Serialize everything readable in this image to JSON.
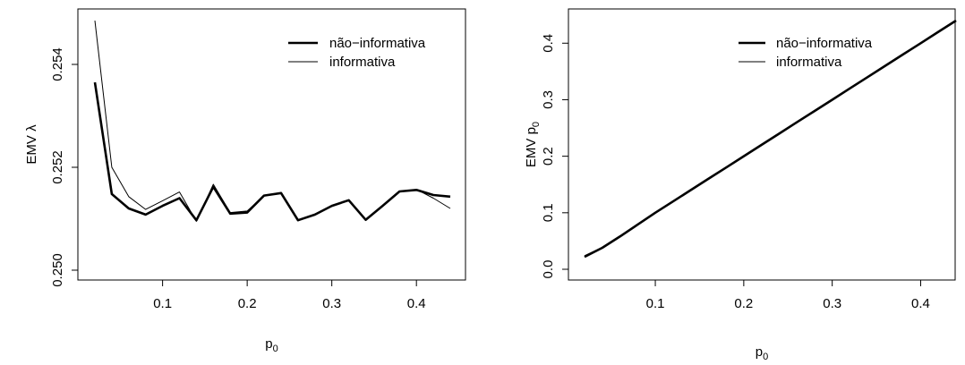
{
  "chart_data": [
    {
      "type": "line",
      "xlabel": "p",
      "xlabel_sub": "0",
      "ylabel": "EMV  λ",
      "ylabel_sub": "",
      "xlim": [
        0.02,
        0.44
      ],
      "ylim": [
        0.25,
        0.2548
      ],
      "xticks": [
        0.1,
        0.2,
        0.3,
        0.4
      ],
      "xtick_labels": [
        "0.1",
        "0.2",
        "0.3",
        "0.4"
      ],
      "yticks": [
        0.25,
        0.252,
        0.254
      ],
      "ytick_labels": [
        "0.250",
        "0.252",
        "0.254"
      ],
      "grid": false,
      "legend_position": "top-right",
      "x": [
        0.02,
        0.04,
        0.06,
        0.08,
        0.1,
        0.12,
        0.14,
        0.16,
        0.18,
        0.2,
        0.22,
        0.24,
        0.26,
        0.28,
        0.3,
        0.32,
        0.34,
        0.36,
        0.38,
        0.4,
        0.42,
        0.44
      ],
      "series": [
        {
          "name": "não−informativa",
          "line_width": "thick",
          "values": [
            0.25365,
            0.25148,
            0.2512,
            0.25108,
            0.25125,
            0.2514,
            0.25097,
            0.25162,
            0.2511,
            0.25112,
            0.25145,
            0.2515,
            0.25097,
            0.25108,
            0.25125,
            0.25136,
            0.25098,
            0.25125,
            0.25153,
            0.25156,
            0.25146,
            0.25143
          ]
        },
        {
          "name": "informativa",
          "line_width": "thin",
          "values": [
            0.25485,
            0.252,
            0.25143,
            0.25118,
            0.25135,
            0.25152,
            0.25095,
            0.25167,
            0.25112,
            0.25115,
            0.25145,
            0.25151,
            0.25096,
            0.25108,
            0.25125,
            0.25136,
            0.25098,
            0.25125,
            0.25153,
            0.25157,
            0.2514,
            0.2512
          ]
        }
      ]
    },
    {
      "type": "line",
      "xlabel": "p",
      "xlabel_sub": "0",
      "ylabel": "EMV  p",
      "ylabel_sub": "0",
      "xlim": [
        0.02,
        0.44
      ],
      "ylim": [
        0.0,
        0.44
      ],
      "xticks": [
        0.1,
        0.2,
        0.3,
        0.4
      ],
      "xtick_labels": [
        "0.1",
        "0.2",
        "0.3",
        "0.4"
      ],
      "yticks": [
        0.0,
        0.1,
        0.2,
        0.3,
        0.4
      ],
      "ytick_labels": [
        "0.0",
        "0.1",
        "0.2",
        "0.3",
        "0.4"
      ],
      "grid": false,
      "legend_position": "top-right",
      "x": [
        0.02,
        0.04,
        0.06,
        0.08,
        0.1,
        0.12,
        0.14,
        0.16,
        0.18,
        0.2,
        0.22,
        0.24,
        0.26,
        0.28,
        0.3,
        0.32,
        0.34,
        0.36,
        0.38,
        0.4,
        0.42,
        0.44
      ],
      "series": [
        {
          "name": "não−informativa",
          "line_width": "thick",
          "values": [
            0.022,
            0.038,
            0.058,
            0.079,
            0.1,
            0.12,
            0.14,
            0.16,
            0.18,
            0.2,
            0.22,
            0.24,
            0.26,
            0.28,
            0.3,
            0.32,
            0.34,
            0.36,
            0.38,
            0.4,
            0.42,
            0.44
          ]
        },
        {
          "name": "informativa",
          "line_width": "thin",
          "values": [
            0.024,
            0.039,
            0.059,
            0.08,
            0.1,
            0.12,
            0.14,
            0.16,
            0.18,
            0.2,
            0.22,
            0.24,
            0.26,
            0.28,
            0.3,
            0.32,
            0.34,
            0.36,
            0.38,
            0.4,
            0.42,
            0.44
          ]
        }
      ]
    }
  ]
}
